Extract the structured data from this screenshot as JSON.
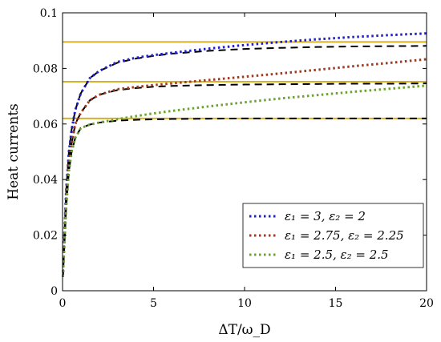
{
  "chart_data": {
    "type": "line",
    "xlabel": "ΔT/ω_D",
    "ylabel": "Heat currents",
    "xlim": [
      0,
      20
    ],
    "ylim": [
      0,
      0.1
    ],
    "x_ticks": [
      "0",
      "5",
      "10",
      "15",
      "20"
    ],
    "y_ticks": [
      "0",
      "0.02",
      "0.04",
      "0.06",
      "0.08",
      "0.1"
    ],
    "grid": false,
    "legend_position": "bottom-right",
    "series": [
      {
        "name": "ε₁ = 3, ε₂ = 2",
        "color": "#1f1fcc",
        "style": "dotted",
        "x": [
          0.02,
          0.1,
          0.2,
          0.35,
          0.5,
          0.7,
          1.0,
          1.5,
          2,
          3,
          4,
          5,
          6,
          8,
          10,
          12,
          14,
          16,
          18,
          20
        ],
        "y": [
          0.005,
          0.02,
          0.036,
          0.05,
          0.058,
          0.065,
          0.071,
          0.0765,
          0.079,
          0.0823,
          0.0838,
          0.0848,
          0.0856,
          0.0871,
          0.0884,
          0.0895,
          0.0905,
          0.0913,
          0.092,
          0.0926
        ]
      },
      {
        "name": "ε₁ = 2.75, ε₂ = 2.25",
        "color": "#a0391e",
        "style": "dotted",
        "x": [
          0.02,
          0.1,
          0.2,
          0.35,
          0.5,
          0.7,
          1.0,
          1.5,
          2,
          3,
          4,
          5,
          6,
          8,
          10,
          12,
          14,
          16,
          18,
          20
        ],
        "y": [
          0.005,
          0.018,
          0.032,
          0.046,
          0.053,
          0.06,
          0.064,
          0.0685,
          0.0705,
          0.0725,
          0.0733,
          0.074,
          0.0746,
          0.0758,
          0.077,
          0.0782,
          0.0795,
          0.0808,
          0.082,
          0.0833
        ]
      },
      {
        "name": "ε₁ = 2.5, ε₂ = 2.5",
        "color": "#6aa42c",
        "style": "dotted",
        "x": [
          0.02,
          0.1,
          0.2,
          0.35,
          0.5,
          0.7,
          1.0,
          1.5,
          2,
          3,
          4,
          5,
          6,
          8,
          10,
          12,
          14,
          16,
          18,
          20
        ],
        "y": [
          0.005,
          0.016,
          0.03,
          0.043,
          0.05,
          0.055,
          0.0585,
          0.0598,
          0.0605,
          0.0617,
          0.0628,
          0.0638,
          0.0647,
          0.0663,
          0.0678,
          0.0692,
          0.0704,
          0.0716,
          0.0727,
          0.0738
        ]
      },
      {
        "color": "#000000",
        "style": "dashed",
        "x": [
          0.02,
          0.1,
          0.2,
          0.35,
          0.5,
          0.7,
          1.0,
          1.5,
          2,
          3,
          4,
          5,
          6,
          8,
          10,
          12,
          14,
          16,
          18,
          20
        ],
        "y": [
          0.005,
          0.02,
          0.036,
          0.05,
          0.058,
          0.065,
          0.071,
          0.0765,
          0.079,
          0.082,
          0.0835,
          0.0845,
          0.0853,
          0.0863,
          0.087,
          0.0874,
          0.0877,
          0.0879,
          0.088,
          0.0881
        ]
      },
      {
        "color": "#000000",
        "style": "dashed",
        "x": [
          0.02,
          0.1,
          0.2,
          0.35,
          0.5,
          0.7,
          1.0,
          1.5,
          2,
          3,
          4,
          5,
          6,
          8,
          10,
          12,
          14,
          16,
          18,
          20
        ],
        "y": [
          0.005,
          0.018,
          0.032,
          0.046,
          0.053,
          0.06,
          0.064,
          0.0685,
          0.0705,
          0.0722,
          0.0729,
          0.0734,
          0.0737,
          0.074,
          0.0742,
          0.0743,
          0.0744,
          0.0745,
          0.0745,
          0.0746
        ]
      },
      {
        "color": "#000000",
        "style": "dashed",
        "x": [
          0.02,
          0.1,
          0.2,
          0.35,
          0.5,
          0.7,
          1.0,
          1.5,
          2,
          3,
          4,
          5,
          6,
          8,
          10,
          12,
          14,
          16,
          18,
          20
        ],
        "y": [
          0.005,
          0.016,
          0.03,
          0.043,
          0.05,
          0.055,
          0.0585,
          0.0598,
          0.0605,
          0.0612,
          0.0615,
          0.0617,
          0.0618,
          0.0619,
          0.062,
          0.062,
          0.062,
          0.062,
          0.062,
          0.062
        ]
      }
    ],
    "hlines": [
      {
        "y": 0.0895,
        "color": "#d4b12a"
      },
      {
        "y": 0.0752,
        "color": "#d4b12a"
      },
      {
        "y": 0.062,
        "color": "#d4b12a"
      }
    ]
  }
}
